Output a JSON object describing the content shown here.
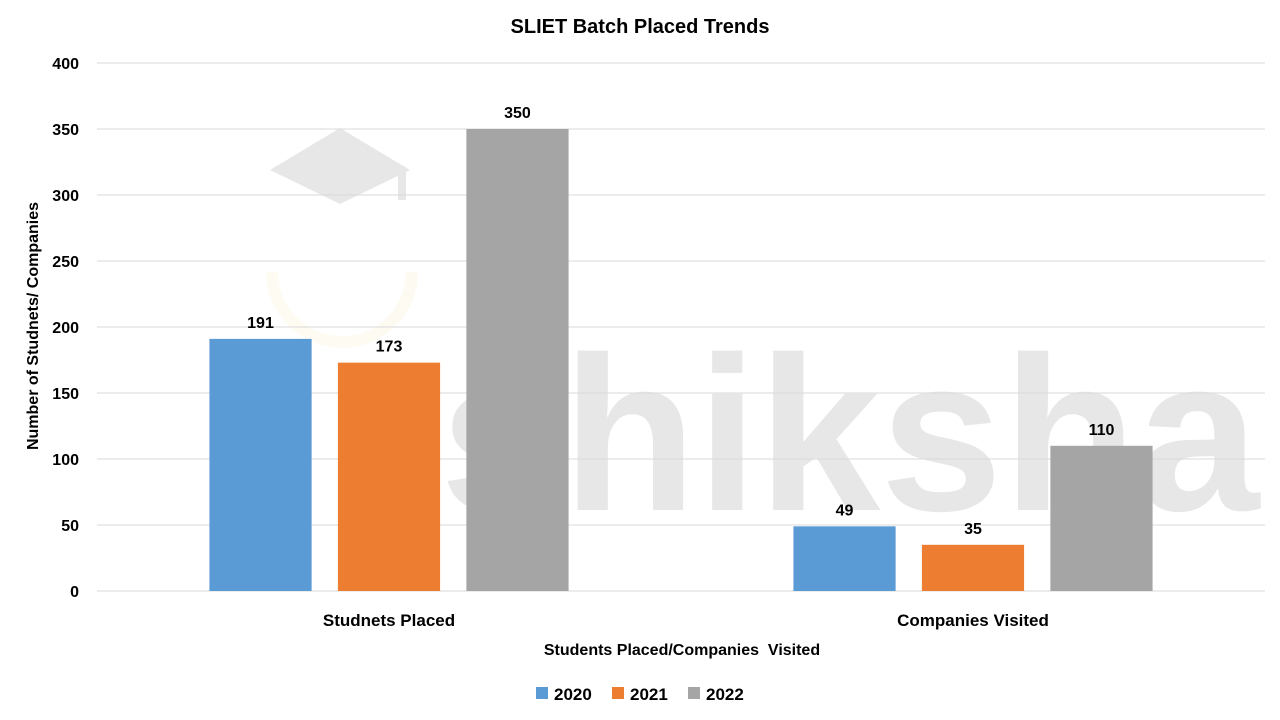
{
  "chart_data": {
    "type": "bar",
    "title": "SLIET Batch Placed Trends",
    "xlabel": "Students Placed/Companies  Visited",
    "ylabel": "Number of Studnets/ Companies",
    "categories": [
      "Studnets Placed",
      "Companies Visited"
    ],
    "series": [
      {
        "name": "2020",
        "values": [
          191,
          49
        ],
        "color": "#5B9BD5"
      },
      {
        "name": "2021",
        "values": [
          173,
          35
        ],
        "color": "#ED7D31"
      },
      {
        "name": "2022",
        "values": [
          350,
          110
        ],
        "color": "#A5A5A5"
      }
    ],
    "ylim": [
      0,
      400
    ],
    "yticks": [
      0,
      50,
      100,
      150,
      200,
      250,
      300,
      350,
      400
    ],
    "grid": true,
    "legend_position": "bottom",
    "data_labels": true
  },
  "watermark": {
    "text": "shiksha",
    "icon": "graduation-cap-logo"
  }
}
